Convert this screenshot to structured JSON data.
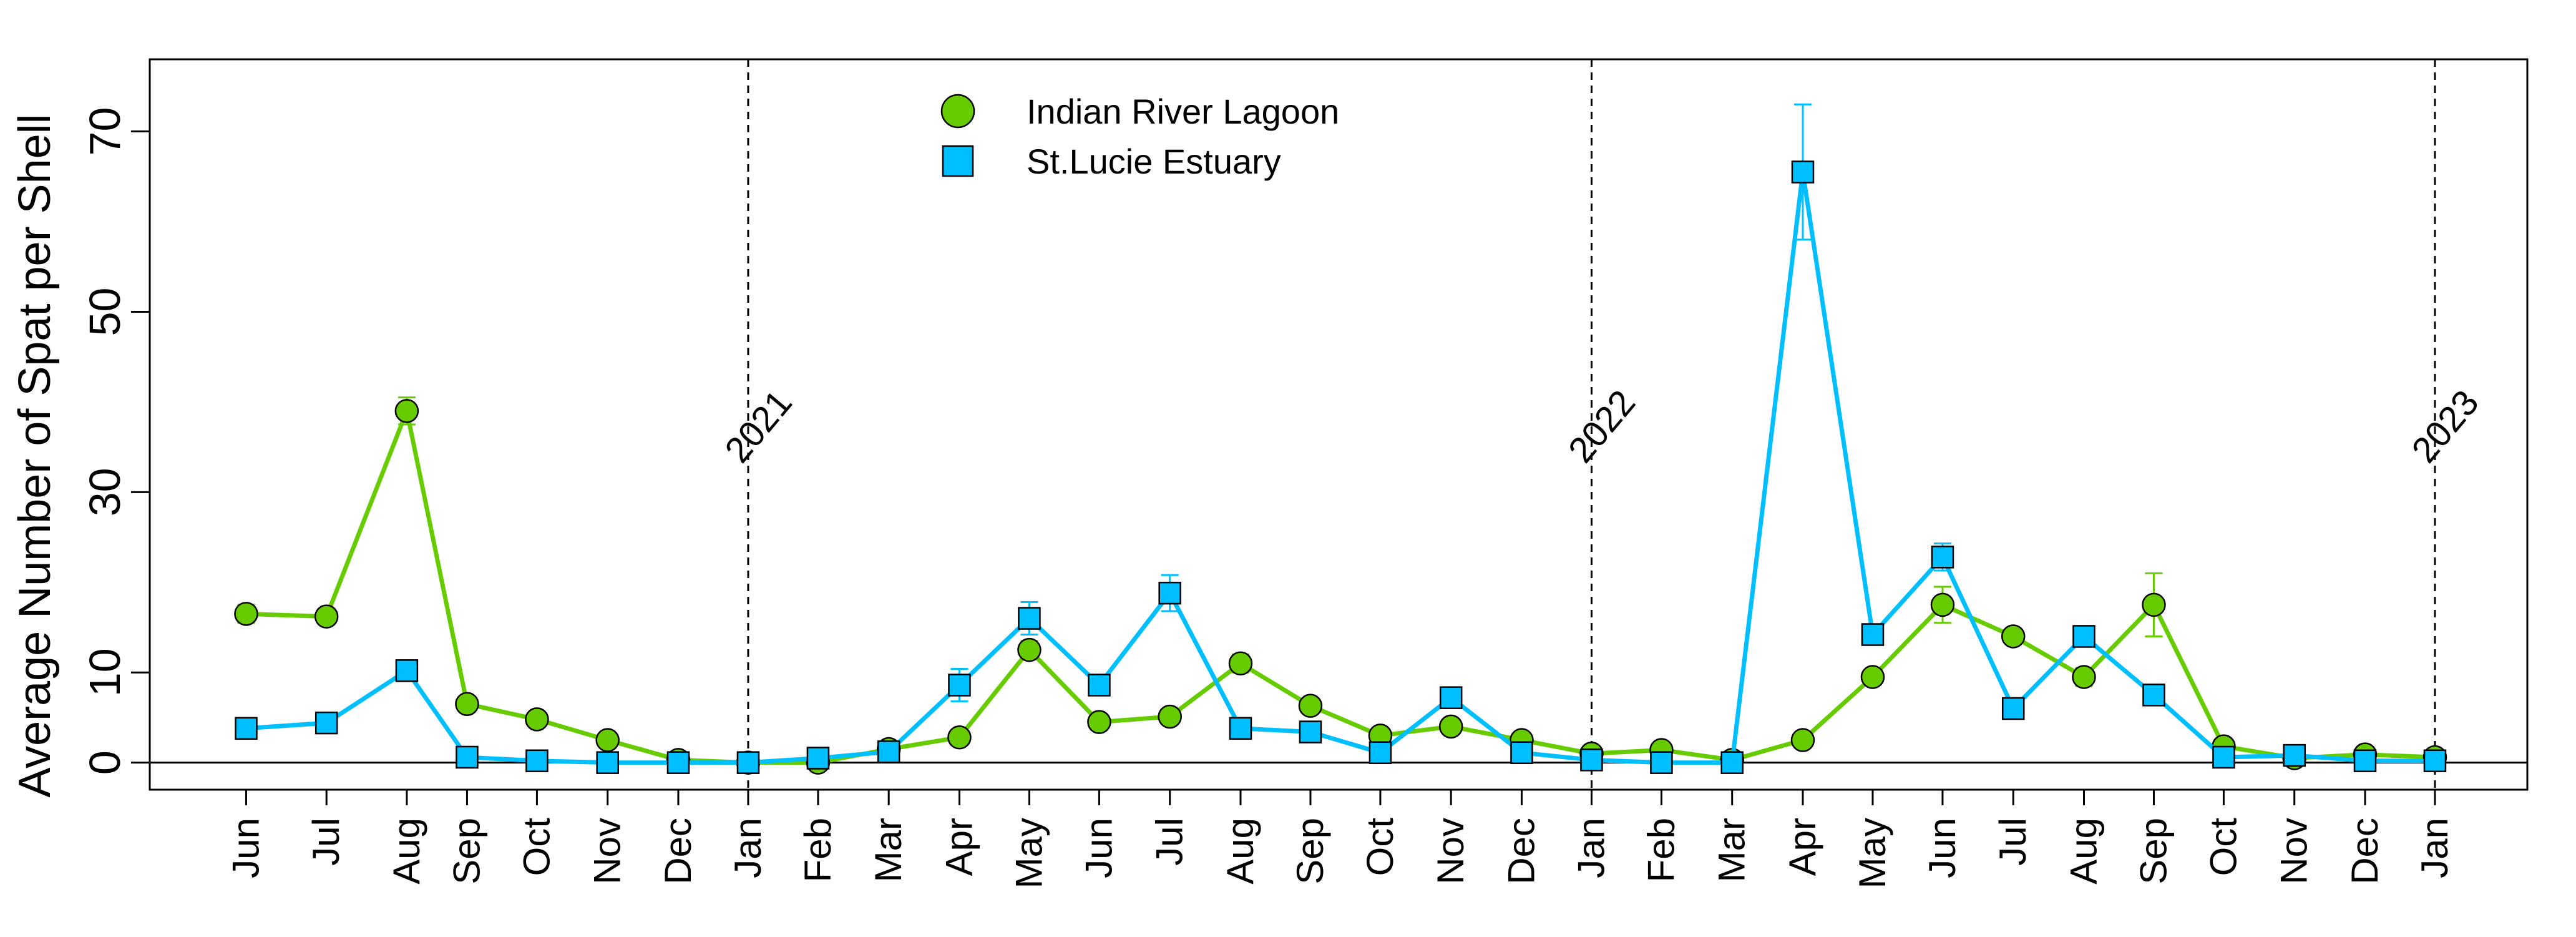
{
  "chart_data": {
    "type": "line",
    "title": "",
    "xlabel": "",
    "ylabel": "Average Number of Spat per Shell",
    "ylim": [
      -3,
      78
    ],
    "yticks": [
      0,
      10,
      30,
      50,
      70
    ],
    "categories": [
      "Jun",
      "Jul",
      "Aug",
      "Sep",
      "Oct",
      "Nov",
      "Dec",
      "Jan",
      "Feb",
      "Mar",
      "Apr",
      "May",
      "Jun",
      "Jul",
      "Aug",
      "Sep",
      "Oct",
      "Nov",
      "Dec",
      "Jan",
      "Feb",
      "Mar",
      "Apr",
      "May",
      "Jun",
      "Jul",
      "Aug",
      "Sep",
      "Oct",
      "Nov",
      "Dec",
      "Jan"
    ],
    "x_ticks": [
      1.0,
      2.0,
      3.0,
      3.75,
      4.62,
      5.5,
      6.38,
      7.25,
      8.12,
      9.0,
      9.88,
      10.75,
      11.62,
      12.5,
      13.38,
      14.25,
      15.12,
      16.0,
      16.88,
      17.75,
      18.62,
      19.5,
      20.38,
      21.25,
      22.12,
      23.0,
      23.88,
      24.75,
      25.62,
      26.5,
      27.38,
      28.25
    ],
    "year_markers": [
      {
        "label": "2021",
        "x": 7.25
      },
      {
        "label": "2022",
        "x": 17.75
      },
      {
        "label": "2023",
        "x": 28.25
      }
    ],
    "legend": {
      "position": "top-center"
    },
    "series": [
      {
        "name": "Indian River Lagoon",
        "color": "#66cc00",
        "marker": "circle",
        "values": [
          16.5,
          16.2,
          39,
          6.5,
          4.8,
          2.5,
          0.3,
          0,
          0,
          1.5,
          2.8,
          12.5,
          4.5,
          5.1,
          11,
          6.3,
          3,
          4,
          2.5,
          1.0,
          1.4,
          0.3,
          2.5,
          9.5,
          17.5,
          14,
          9.5,
          17.5,
          1.8,
          0.5,
          0.9,
          0.6
        ],
        "errors": [
          1.0,
          0.8,
          1.5,
          0,
          0,
          0,
          0,
          0,
          0,
          0,
          0,
          1.0,
          0,
          0,
          1.0,
          0,
          0,
          0,
          0,
          0,
          0,
          0,
          0,
          0,
          2.0,
          0,
          1.0,
          3.5,
          0,
          0,
          0,
          0
        ]
      },
      {
        "name": "St.Lucie Estuary",
        "color": "#00bfff",
        "marker": "square",
        "values": [
          3.8,
          4.4,
          10.2,
          0.6,
          0.2,
          0,
          0,
          0,
          0.5,
          1.2,
          8.6,
          16,
          8.6,
          18.8,
          3.8,
          3.4,
          1.1,
          7.2,
          1.1,
          0.3,
          0,
          0,
          65.5,
          14.2,
          22.8,
          6,
          14,
          7.5,
          0.6,
          0.8,
          0.2,
          0.2
        ],
        "errors": [
          0,
          0,
          1.0,
          0,
          0,
          0,
          0,
          0,
          0,
          0,
          1.8,
          1.8,
          0,
          2.0,
          0,
          0,
          0,
          0,
          0,
          0,
          0,
          0,
          7.5,
          0,
          1.5,
          0,
          0.5,
          0,
          0,
          0,
          0,
          0
        ]
      }
    ]
  }
}
